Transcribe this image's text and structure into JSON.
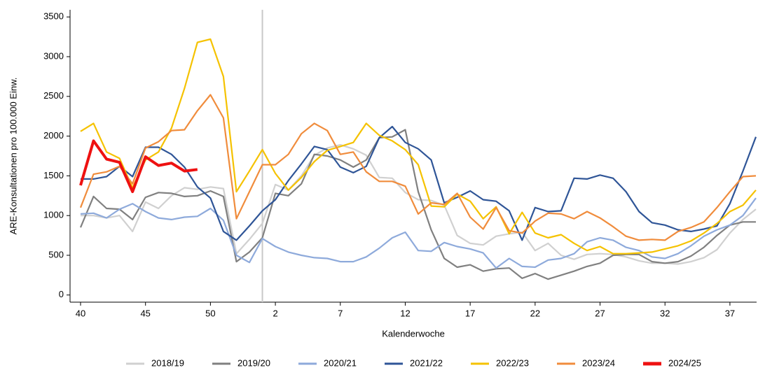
{
  "chart_data": {
    "type": "line",
    "y_label": "ARE-Konsultationen pro 100.000 Einw.",
    "x_label": "Kalenderwoche",
    "categories": [
      40,
      null,
      null,
      null,
      null,
      45,
      null,
      null,
      null,
      null,
      50,
      null,
      null,
      null,
      null,
      2,
      null,
      null,
      null,
      null,
      7,
      null,
      null,
      null,
      null,
      12,
      null,
      null,
      null,
      null,
      17,
      null,
      null,
      null,
      null,
      22,
      null,
      null,
      null,
      null,
      27,
      null,
      null,
      null,
      null,
      32,
      null,
      null,
      null,
      null,
      37,
      null,
      null
    ],
    "ylim": [
      -90,
      3590
    ],
    "yticks": [
      0,
      500,
      1000,
      1500,
      2000,
      2500,
      3000,
      3500
    ],
    "series": [
      {
        "name": "2018/19",
        "color": "#d0d0d0",
        "values": [
          1000,
          1000,
          970,
          1000,
          800,
          1170,
          1090,
          1250,
          1350,
          1330,
          1360,
          1340,
          520,
          700,
          900,
          1390,
          1320,
          1500,
          1760,
          1850,
          1890,
          1840,
          1760,
          1480,
          1470,
          1290,
          1200,
          1190,
          1130,
          750,
          650,
          630,
          740,
          770,
          790,
          560,
          650,
          500,
          450,
          510,
          520,
          510,
          480,
          430,
          400,
          400,
          390,
          420,
          470,
          570,
          780,
          950,
          1080
        ]
      },
      {
        "name": "2019/20",
        "color": "#808080",
        "values": [
          850,
          1240,
          1090,
          1080,
          950,
          1230,
          1290,
          1280,
          1240,
          1250,
          1310,
          1240,
          420,
          540,
          720,
          1280,
          1250,
          1400,
          1770,
          1750,
          1700,
          1610,
          1700,
          1980,
          1990,
          2080,
          1300,
          820,
          460,
          350,
          380,
          300,
          330,
          340,
          210,
          270,
          200,
          250,
          300,
          360,
          400,
          500,
          510,
          510,
          420,
          400,
          420,
          490,
          600,
          750,
          880,
          920,
          920
        ]
      },
      {
        "name": "2020/21",
        "color": "#8eaadb",
        "values": [
          1020,
          1030,
          970,
          1080,
          1150,
          1050,
          970,
          950,
          980,
          990,
          1090,
          940,
          500,
          410,
          710,
          610,
          540,
          500,
          470,
          460,
          420,
          420,
          480,
          590,
          720,
          790,
          560,
          550,
          660,
          610,
          580,
          530,
          340,
          460,
          360,
          350,
          440,
          460,
          520,
          670,
          720,
          690,
          600,
          560,
          480,
          460,
          520,
          620,
          740,
          820,
          880,
          1000,
          1220
        ]
      },
      {
        "name": "2021/22",
        "color": "#2f5597",
        "values": [
          1460,
          1460,
          1490,
          1620,
          1490,
          1860,
          1860,
          1770,
          1610,
          1360,
          1220,
          800,
          690,
          870,
          1060,
          1200,
          1440,
          1650,
          1870,
          1830,
          1610,
          1540,
          1620,
          1980,
          2120,
          1920,
          1840,
          1700,
          1160,
          1230,
          1310,
          1200,
          1180,
          1060,
          690,
          1100,
          1050,
          1060,
          1470,
          1460,
          1510,
          1470,
          1300,
          1050,
          910,
          880,
          820,
          800,
          830,
          870,
          1150,
          1560,
          1990
        ]
      },
      {
        "name": "2022/23",
        "color": "#f5c200",
        "values": [
          2060,
          2160,
          1800,
          1720,
          1350,
          1700,
          1800,
          2100,
          2600,
          3180,
          3220,
          2750,
          1300,
          1560,
          1830,
          1530,
          1320,
          1480,
          1680,
          1820,
          1870,
          1920,
          2160,
          2010,
          1940,
          1830,
          1640,
          1120,
          1110,
          1270,
          1180,
          960,
          1110,
          770,
          1040,
          780,
          720,
          760,
          650,
          560,
          610,
          520,
          520,
          530,
          540,
          580,
          620,
          680,
          780,
          900,
          1050,
          1130,
          1320
        ]
      },
      {
        "name": "2023/24",
        "color": "#f08c3c",
        "values": [
          1100,
          1520,
          1550,
          1620,
          1400,
          1850,
          1930,
          2070,
          2080,
          2320,
          2520,
          2230,
          960,
          1300,
          1640,
          1640,
          1770,
          2030,
          2160,
          2070,
          1770,
          1800,
          1550,
          1430,
          1430,
          1370,
          1020,
          1160,
          1140,
          1280,
          980,
          830,
          1100,
          810,
          780,
          930,
          1030,
          1020,
          960,
          1050,
          970,
          860,
          740,
          690,
          700,
          690,
          800,
          850,
          920,
          1100,
          1300,
          1490,
          1500
        ]
      },
      {
        "name": "2024/25",
        "color": "#ee1111",
        "values": [
          1380,
          1940,
          1710,
          1670,
          1300,
          1740,
          1630,
          1660,
          1560,
          1580,
          null,
          null,
          null,
          null,
          null,
          null,
          null,
          null,
          null,
          null,
          null,
          null,
          null,
          null,
          null,
          null,
          null,
          null,
          null,
          null,
          null,
          null,
          null,
          null,
          null,
          null,
          null,
          null,
          null,
          null,
          null,
          null,
          null,
          null,
          null,
          null,
          null,
          null,
          null,
          null,
          null,
          null,
          null
        ]
      }
    ]
  }
}
